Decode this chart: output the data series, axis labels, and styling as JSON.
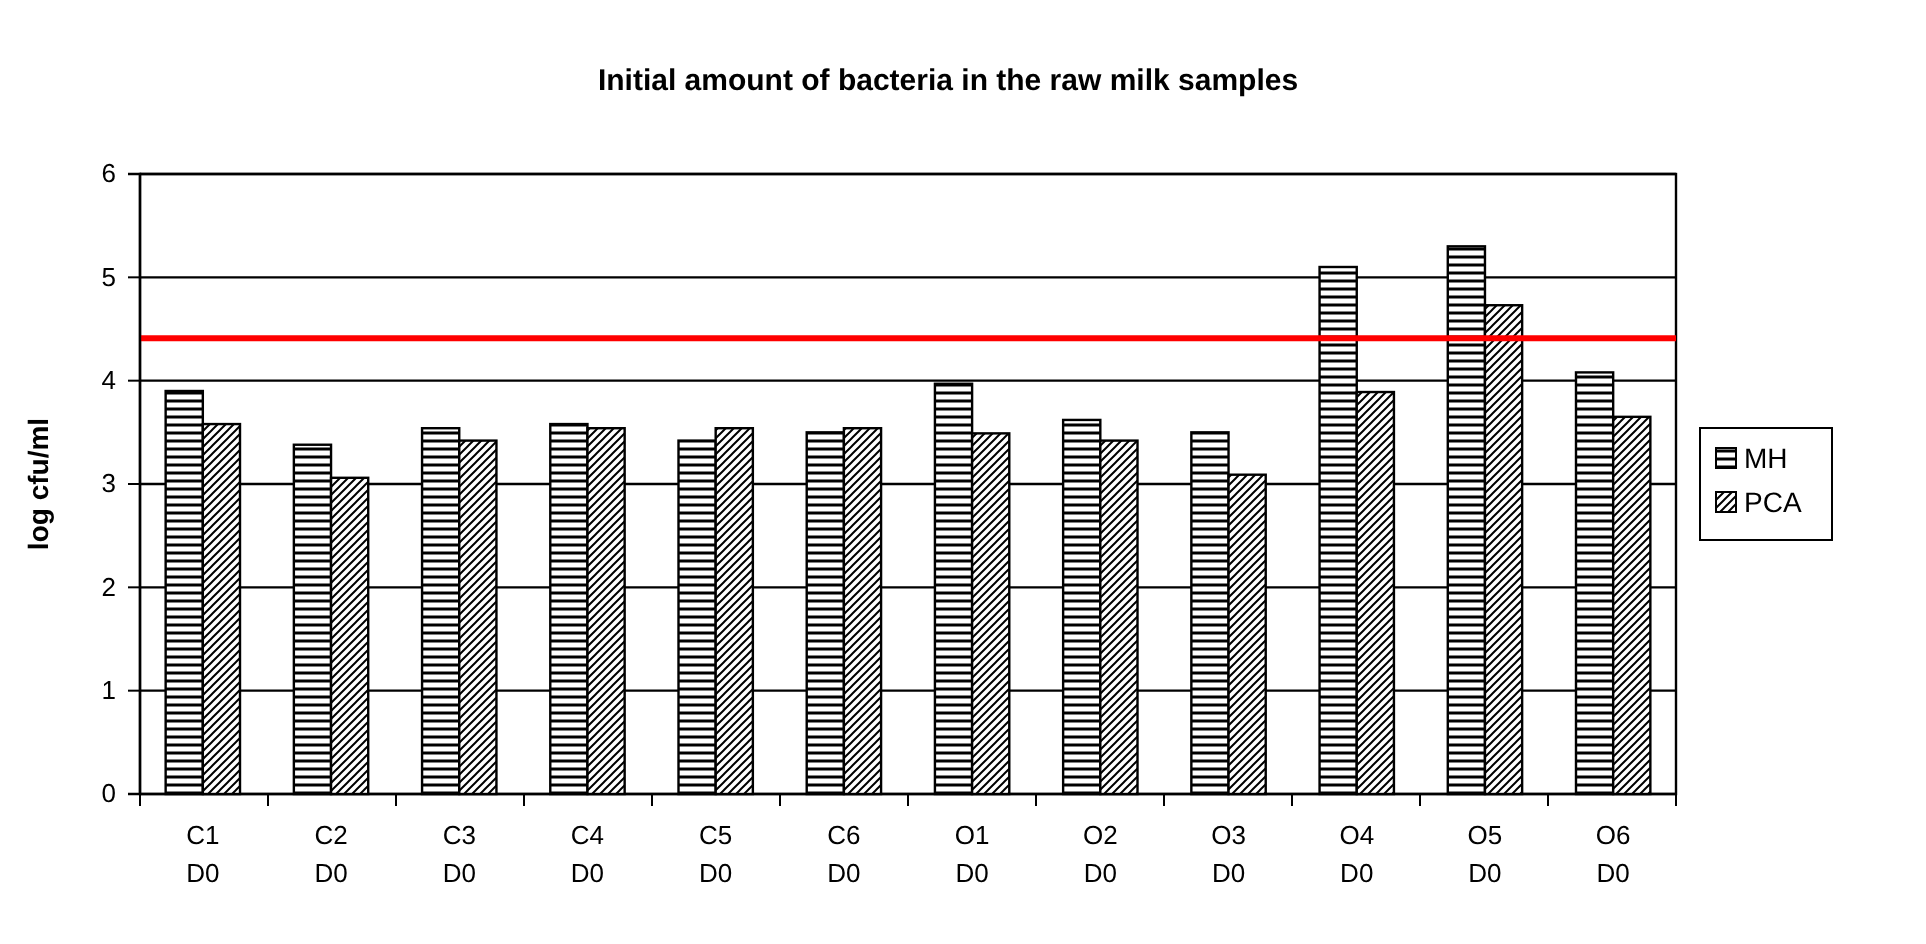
{
  "chart_data": {
    "type": "bar",
    "title": "Initial amount of bacteria in the raw milk samples",
    "ylabel": "log cfu/ml",
    "categories": [
      "C1 D0",
      "C2 D0",
      "C3 D0",
      "C4 D0",
      "C5 D0",
      "C6 D0",
      "O1 D0",
      "O2 D0",
      "O3 D0",
      "O4 D0",
      "O5 D0",
      "O6 D0"
    ],
    "series": [
      {
        "name": "MH",
        "color": "#000000",
        "values": [
          3.9,
          3.38,
          3.54,
          3.58,
          3.42,
          3.5,
          3.97,
          3.62,
          3.5,
          5.1,
          5.3,
          4.08
        ]
      },
      {
        "name": "PCA",
        "color": "#000000",
        "values": [
          3.58,
          3.06,
          3.42,
          3.54,
          3.54,
          3.54,
          3.49,
          3.42,
          3.09,
          3.89,
          4.73,
          3.65
        ]
      }
    ],
    "ylim": [
      0,
      6
    ],
    "yticks": [
      0,
      1,
      2,
      3,
      4,
      5,
      6
    ],
    "grid": "y",
    "legend": "right",
    "ref_lines": [
      {
        "axis": "y",
        "value": 4.41,
        "color": "#ff0000"
      }
    ]
  }
}
